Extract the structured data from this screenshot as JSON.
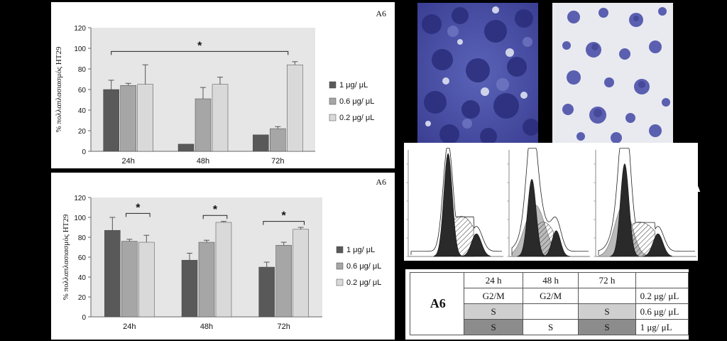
{
  "figure": {
    "chart_data": [
      {
        "type": "bar",
        "title": "A6",
        "ylabel": "% πολλαπλασιασμός HT29",
        "ylim": [
          0,
          120
        ],
        "yticks": [
          0,
          20,
          40,
          60,
          80,
          100,
          120
        ],
        "categories": [
          "24h",
          "48h",
          "72h"
        ],
        "series": [
          {
            "name": "1 μg/ μL",
            "color": "#595959",
            "values": [
              60,
              7,
              16
            ],
            "errors": [
              9,
              0,
              0
            ]
          },
          {
            "name": "0.6 μg/ μL",
            "color": "#a6a6a6",
            "values": [
              64,
              51,
              22
            ],
            "errors": [
              2,
              11,
              2
            ]
          },
          {
            "name": "0.2 μg/ μL",
            "color": "#d9d9d9",
            "values": [
              65,
              65,
              84
            ],
            "errors": [
              19,
              7,
              3
            ]
          }
        ],
        "annotations": [
          {
            "label": "*",
            "from": "24h",
            "to": "72h"
          }
        ],
        "legend": "right"
      },
      {
        "type": "bar",
        "title": "A6",
        "ylabel": "% πολλαπλασιασμός HT29",
        "ylim": [
          0,
          120
        ],
        "yticks": [
          0,
          20,
          40,
          60,
          80,
          100,
          120
        ],
        "categories": [
          "24h",
          "48h",
          "72h"
        ],
        "series": [
          {
            "name": "1 μg/ μL",
            "color": "#595959",
            "values": [
              87,
              57,
              50
            ],
            "errors": [
              13,
              7,
              5
            ]
          },
          {
            "name": "0.6 μg/ μL",
            "color": "#a6a6a6",
            "values": [
              76,
              75,
              72
            ],
            "errors": [
              2,
              2,
              3
            ]
          },
          {
            "name": "0.2 μg/ μL",
            "color": "#d9d9d9",
            "values": [
              75,
              95,
              88
            ],
            "errors": [
              7,
              1,
              2
            ]
          }
        ],
        "annotations": [
          {
            "label": "*",
            "group": "24h"
          },
          {
            "label": "*",
            "group": "48h"
          },
          {
            "label": "*",
            "group": "72h"
          }
        ],
        "legend": "right"
      }
    ],
    "delta_symbol": "Δ",
    "table": {
      "row_label": "A6",
      "headers": [
        "24 h",
        "48 h",
        "72 h"
      ],
      "rows": [
        {
          "cells": [
            "G2/M",
            "G2/M",
            ""
          ],
          "conc": "0.2 μg/ μL",
          "shade": "none"
        },
        {
          "cells": [
            "S",
            "",
            "S"
          ],
          "conc": "0.6 μg/ μL",
          "shade": "gray"
        },
        {
          "cells": [
            "S",
            "S",
            "S"
          ],
          "conc": "1 μg/ μL",
          "shade": "dark"
        }
      ]
    }
  }
}
